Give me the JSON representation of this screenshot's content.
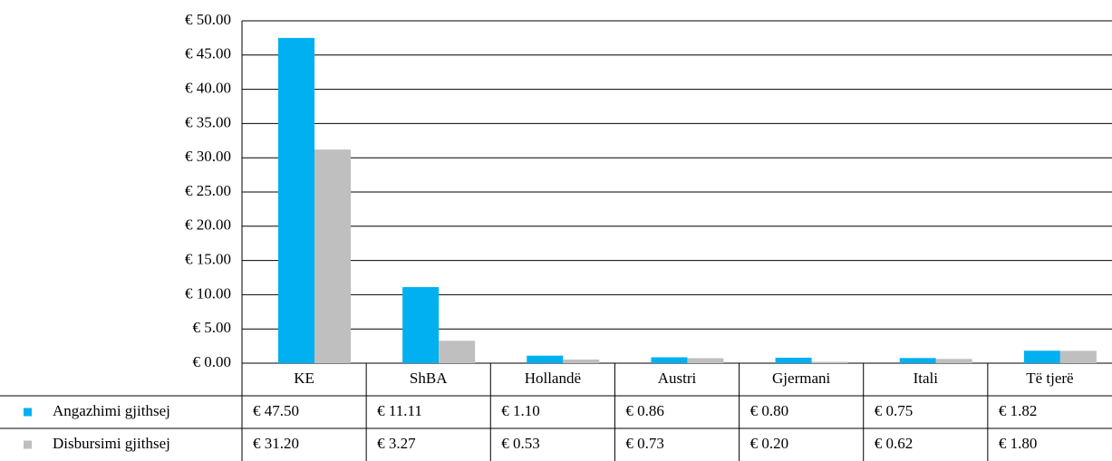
{
  "chart_data": {
    "type": "bar",
    "categories": [
      "KE",
      "ShBA",
      "Hollandë",
      "Austri",
      "Gjermani",
      "Itali",
      "Të tjerë"
    ],
    "series": [
      {
        "name": "Angazhimi gjithsej",
        "color": "#00b0f0",
        "values": [
          47.5,
          11.11,
          1.1,
          0.86,
          0.8,
          0.75,
          1.82
        ],
        "value_labels": [
          "€ 47.50",
          "€ 11.11",
          "€ 1.10",
          "€ 0.86",
          "€ 0.80",
          "€ 0.75",
          "€ 1.82"
        ]
      },
      {
        "name": "Disbursimi gjithsej",
        "color": "#bfbfbf",
        "values": [
          31.2,
          3.27,
          0.53,
          0.73,
          0.2,
          0.62,
          1.8
        ],
        "value_labels": [
          "€ 31.20",
          "€ 3.27",
          "€ 0.53",
          "€ 0.73",
          "€ 0.20",
          "€ 0.62",
          "€ 1.80"
        ]
      }
    ],
    "ylim": [
      0,
      50
    ],
    "yticks": [
      {
        "value": 0,
        "label": "€ 0.00"
      },
      {
        "value": 5,
        "label": "€ 5.00"
      },
      {
        "value": 10,
        "label": "€ 10.00"
      },
      {
        "value": 15,
        "label": "€ 15.00"
      },
      {
        "value": 20,
        "label": "€ 20.00"
      },
      {
        "value": 25,
        "label": "€ 25.00"
      },
      {
        "value": 30,
        "label": "€ 30.00"
      },
      {
        "value": 35,
        "label": "€ 35.00"
      },
      {
        "value": 40,
        "label": "€ 40.00"
      },
      {
        "value": 45,
        "label": "€ 45.00"
      },
      {
        "value": 50,
        "label": "€ 50.00"
      }
    ],
    "grid": true
  }
}
